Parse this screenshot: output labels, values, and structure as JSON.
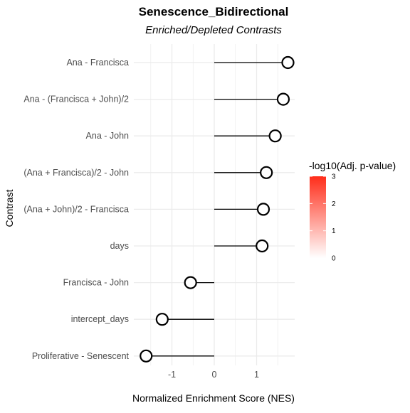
{
  "chart_data": {
    "type": "lollipop",
    "title": "Senescence_Bidirectional",
    "subtitle": "Enriched/Depleted Contrasts",
    "xlabel": "Normalized Enrichment Score (NES)",
    "ylabel": "Contrast",
    "xlim": [
      -1.9,
      1.9
    ],
    "x_ticks": [
      -1,
      0,
      1
    ],
    "x_tick_labels": [
      "-1",
      "0",
      "1"
    ],
    "grid": true,
    "categories": [
      "Ana - Francisca",
      "Ana - (Francisca + John)/2",
      "Ana - John",
      "(Ana + Francisca)/2 - John",
      "(Ana + John)/2 - Francisca",
      "days",
      "Francisca - John",
      "intercept_days",
      "Proliferative - Senescent"
    ],
    "values": [
      1.74,
      1.63,
      1.44,
      1.23,
      1.16,
      1.13,
      -0.56,
      -1.23,
      -1.61
    ],
    "color_values": [
      0,
      0,
      0,
      0,
      0,
      0,
      0,
      0,
      0
    ],
    "legend": {
      "title": "-log10(Adj. p-value)",
      "ticks": [
        0,
        1,
        2,
        3
      ],
      "tick_labels": [
        "0",
        "1",
        "2",
        "3"
      ],
      "low_color": "#ffffff",
      "high_color": "#ff2d1a",
      "placement": "right"
    },
    "marker_stroke": "#000000",
    "grid_color": "#ebebeb",
    "text_color": "#4d4d4d"
  }
}
